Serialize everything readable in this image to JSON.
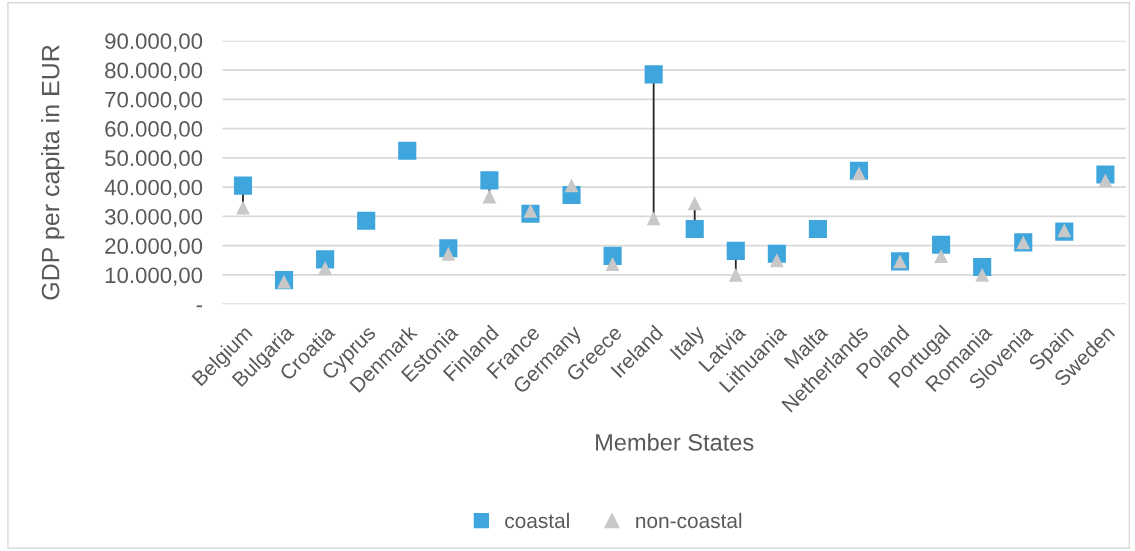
{
  "chart_data": {
    "type": "scatter",
    "xlabel": "Member States",
    "ylabel": "GDP per capita in EUR",
    "categories": [
      "Belgium",
      "Bulgaria",
      "Croatia",
      "Cyprus",
      "Denmark",
      "Estonia",
      "Finland",
      "France",
      "Germany",
      "Greece",
      "Ireland",
      "Italy",
      "Latvia",
      "Lithuania",
      "Malta",
      "Netherlands",
      "Poland",
      "Portugal",
      "Romania",
      "Slovenia",
      "Spain",
      "Sweden"
    ],
    "series": [
      {
        "name": "coastal",
        "color": "#3ea6dd",
        "marker": "square",
        "values": [
          40500,
          8200,
          15300,
          28500,
          52400,
          19100,
          42300,
          30900,
          37300,
          16500,
          78500,
          25700,
          18200,
          17200,
          25700,
          45600,
          14600,
          20300,
          12700,
          21100,
          24800,
          44300
        ]
      },
      {
        "name": "non-coastal",
        "color": "#c8c8c8",
        "marker": "triangle",
        "values": [
          33000,
          7700,
          12300,
          null,
          null,
          17200,
          36800,
          31900,
          40600,
          13700,
          29300,
          34500,
          10000,
          15000,
          null,
          44700,
          14600,
          16400,
          10000,
          21100,
          25200,
          42300
        ]
      }
    ],
    "ylim": [
      0,
      90000
    ],
    "yticks": [
      {
        "value": 0,
        "label": "-"
      },
      {
        "value": 10000,
        "label": "10.000,00"
      },
      {
        "value": 20000,
        "label": "20.000,00"
      },
      {
        "value": 30000,
        "label": "30.000,00"
      },
      {
        "value": 40000,
        "label": "40.000,00"
      },
      {
        "value": 50000,
        "label": "50.000,00"
      },
      {
        "value": 60000,
        "label": "60.000,00"
      },
      {
        "value": 70000,
        "label": "70.000,00"
      },
      {
        "value": 80000,
        "label": "80.000,00"
      },
      {
        "value": 90000,
        "label": "90.000,00"
      }
    ],
    "grid": "y",
    "legend": "bottom"
  }
}
